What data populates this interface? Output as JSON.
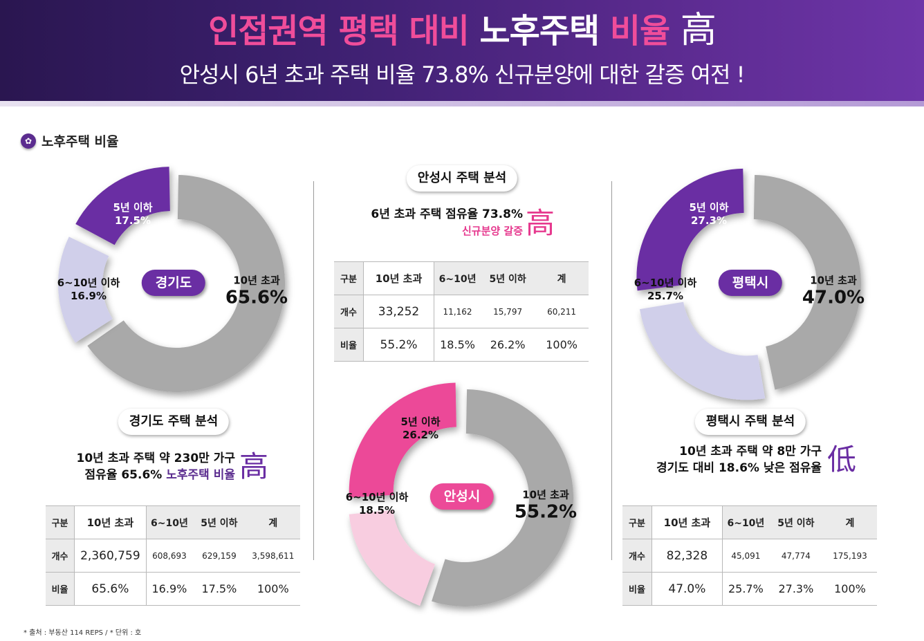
{
  "banner": {
    "line1_a": "인접권역 평택 대비",
    "line1_b": "노후주택",
    "line1_c": "비율",
    "line1_hanja": "高",
    "line2": "안성시 6년 초과 주택 비율 73.8% 신규분양에 대한 갈증 여전 !"
  },
  "section_title": "노후주택 비율",
  "colors": {
    "purple": "#6a2ea3",
    "lavender": "#d0cfea",
    "gray": "#a9a9a9",
    "pink": "#ec4a98",
    "light_pink": "#f8cde0"
  },
  "chart_data": [
    {
      "type": "pie",
      "name": "경기도",
      "slices": [
        {
          "label": "10년 초과",
          "value": 65.6,
          "display": "65.6%"
        },
        {
          "label": "6~10년 이하",
          "value": 16.9,
          "display": "16.9%"
        },
        {
          "label": "5년 이하",
          "value": 17.5,
          "display": "17.5%"
        }
      ]
    },
    {
      "type": "pie",
      "name": "평택시",
      "slices": [
        {
          "label": "10년 초과",
          "value": 47.0,
          "display": "47.0%"
        },
        {
          "label": "6~10년 이하",
          "value": 25.7,
          "display": "25.7%"
        },
        {
          "label": "5년 이하",
          "value": 27.3,
          "display": "27.3%"
        }
      ]
    },
    {
      "type": "pie",
      "name": "안성시",
      "slices": [
        {
          "label": "10년 초과",
          "value": 55.2,
          "display": "55.2%"
        },
        {
          "label": "6~10년 이하",
          "value": 18.5,
          "display": "18.5%"
        },
        {
          "label": "5년 이하",
          "value": 26.2,
          "display": "26.2%"
        }
      ]
    },
    {
      "type": "table",
      "name": "경기도 주택 분석",
      "columns": [
        "구분",
        "10년 초과",
        "6~10년",
        "5년 이하",
        "계"
      ],
      "rows": [
        [
          "개수",
          "2,360,759",
          "608,693",
          "629,159",
          "3,598,611"
        ],
        [
          "비율",
          "65.6%",
          "16.9%",
          "17.5%",
          "100%"
        ]
      ]
    },
    {
      "type": "table",
      "name": "안성시 주택 분석",
      "columns": [
        "구분",
        "10년 초과",
        "6~10년",
        "5년 이하",
        "계"
      ],
      "rows": [
        [
          "개수",
          "33,252",
          "11,162",
          "15,797",
          "60,211"
        ],
        [
          "비율",
          "55.2%",
          "18.5%",
          "26.2%",
          "100%"
        ]
      ]
    },
    {
      "type": "table",
      "name": "평택시 주택 분석",
      "columns": [
        "구분",
        "10년 초과",
        "6~10년",
        "5년 이하",
        "계"
      ],
      "rows": [
        [
          "개수",
          "82,328",
          "45,091",
          "47,774",
          "175,193"
        ],
        [
          "비율",
          "47.0%",
          "25.7%",
          "27.3%",
          "100%"
        ]
      ]
    }
  ],
  "gyeonggi": {
    "analysis_title": "경기도 주택 분석",
    "note_line1": "10년 초과 주택 약 230만 가구",
    "note_line2_a": "점유율 65.6%",
    "note_line2_b": "노후주택 비율",
    "hanja": "高"
  },
  "anseong": {
    "analysis_title": "안성시 주택 분석",
    "note_line1": "6년 초과 주택 점유율 73.8%",
    "note_line2": "신규분양 갈증",
    "hanja": "高"
  },
  "pyeongtaek": {
    "analysis_title": "평택시 주택 분석",
    "note_line1": "10년 초과 주택 약 8만 가구",
    "note_line2": "경기도 대비 18.6% 낮은 점유율",
    "hanja": "低"
  },
  "source": "* 출처 : 부동산 114 REPS / * 단위 : 호"
}
